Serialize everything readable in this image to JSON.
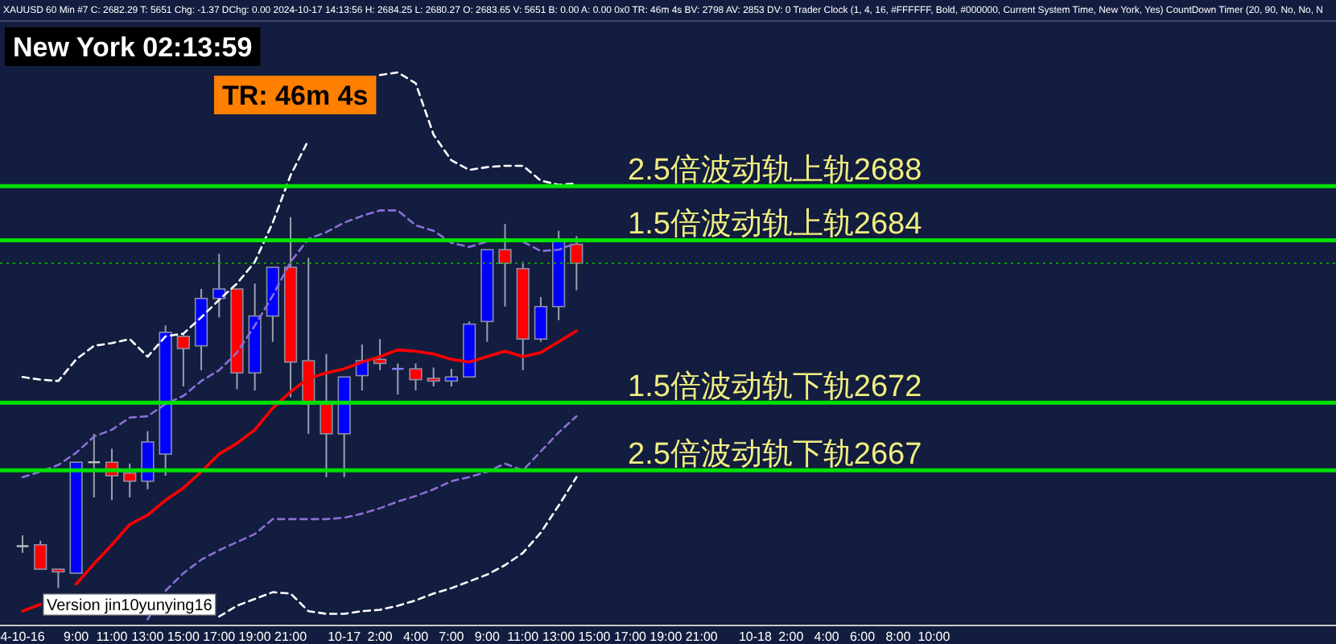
{
  "chart_data": {
    "type": "candlestick",
    "categories": [
      "4-10-16",
      null,
      null,
      "9:00",
      null,
      "11:00",
      null,
      "13:00",
      null,
      "15:00",
      null,
      "17:00",
      null,
      "19:00",
      null,
      "21:00",
      null,
      null,
      "10-17",
      null,
      "2:00",
      null,
      "4:00",
      null,
      "7:00",
      null,
      "9:00",
      null,
      "11:00",
      null,
      "13:00",
      null,
      "15:00",
      null,
      "17:00",
      null,
      "19:00",
      null,
      "21:00",
      null,
      null,
      "10-18",
      null,
      "2:00",
      null,
      "4:00",
      null,
      "6:00",
      null,
      "8:00",
      null,
      "10:00",
      null,
      null,
      null,
      null,
      null,
      null,
      null,
      null,
      null,
      null,
      null,
      null,
      null,
      null,
      null,
      null,
      null,
      null,
      null,
      null,
      null,
      null
    ],
    "ohlc": [
      [
        2661.4,
        2662.2,
        2660.9,
        2661.4
      ],
      [
        2661.5,
        2661.8,
        2659.7,
        2659.7
      ],
      [
        2659.7,
        2659.7,
        2658.3,
        2659.5
      ],
      [
        2659.4,
        2667.6,
        2659.4,
        2667.6
      ],
      [
        2667.6,
        2669.7,
        2665.0,
        2667.6
      ],
      [
        2667.6,
        2668.6,
        2664.8,
        2666.6
      ],
      [
        2666.8,
        2667.5,
        2665.0,
        2666.2
      ],
      [
        2666.2,
        2669.9,
        2665.6,
        2669.1
      ],
      [
        2668.2,
        2677.7,
        2666.6,
        2677.2
      ],
      [
        2676.9,
        2677.1,
        2673.2,
        2676.0
      ],
      [
        2676.2,
        2680.4,
        2674.4,
        2679.7
      ],
      [
        2679.7,
        2683.0,
        2678.3,
        2680.4
      ],
      [
        2680.4,
        2680.4,
        2673.0,
        2674.2
      ],
      [
        2674.2,
        2680.8,
        2672.9,
        2678.4
      ],
      [
        2678.4,
        2682.0,
        2676.5,
        2682.0
      ],
      [
        2682.0,
        2685.7,
        2672.4,
        2675.0
      ],
      [
        2675.1,
        2682.7,
        2669.7,
        2671.9
      ],
      [
        2671.9,
        2675.6,
        2666.5,
        2669.7
      ],
      [
        2669.7,
        2673.9,
        2666.5,
        2673.9
      ],
      [
        2674.0,
        2676.3,
        2672.9,
        2675.1
      ],
      [
        2675.2,
        2676.7,
        2674.4,
        2674.9
      ],
      [
        2674.5,
        2674.9,
        2672.6,
        2674.5
      ],
      [
        2674.5,
        2674.9,
        2672.9,
        2673.7
      ],
      [
        2673.8,
        2674.6,
        2673.2,
        2673.6
      ],
      [
        2673.6,
        2674.5,
        2673.2,
        2673.9
      ],
      [
        2673.9,
        2678.0,
        2673.9,
        2677.8
      ],
      [
        2678.0,
        2683.3,
        2676.5,
        2683.3
      ],
      [
        2683.3,
        2685.2,
        2679.1,
        2682.3
      ],
      [
        2681.9,
        2682.4,
        2674.4,
        2676.7
      ],
      [
        2676.7,
        2679.8,
        2676.5,
        2679.1
      ],
      [
        2679.1,
        2684.7,
        2678.1,
        2683.9
      ],
      [
        2683.7,
        2684.3,
        2680.3,
        2682.3
      ],
      null,
      null,
      null,
      null,
      null,
      null,
      null,
      null,
      null,
      null,
      null,
      null,
      null,
      null,
      null,
      null,
      null,
      null,
      null,
      null,
      null,
      null,
      null,
      null,
      null,
      null,
      null,
      null,
      null,
      null,
      null,
      null,
      null,
      null,
      null,
      null,
      null,
      null,
      null,
      null,
      null,
      null
    ],
    "colors": [
      "#c0c0c0",
      "#ff0000",
      "#ff0000",
      "#0000ff",
      "#c0c0c0",
      "#ff0000",
      "#ff0000",
      "#0000ff",
      "#0000ff",
      "#ff0000",
      "#0000ff",
      "#0000ff",
      "#ff0000",
      "#0000ff",
      "#0000ff",
      "#ff0000",
      "#ff0000",
      "#ff0000",
      "#0000ff",
      "#0000ff",
      "#ff0000",
      "#8080ff",
      "#ff0000",
      "#ff0000",
      "#0000ff",
      "#0000ff",
      "#0000ff",
      "#ff0000",
      "#ff0000",
      "#0000ff",
      "#0000ff",
      "#ff0000",
      null,
      null,
      null,
      null,
      null,
      null,
      null,
      null,
      null,
      null,
      null,
      null,
      null,
      null,
      null,
      null,
      null,
      null,
      null,
      null,
      null,
      null,
      null,
      null,
      null,
      null,
      null,
      null,
      null,
      null,
      null,
      null,
      null,
      null,
      null,
      null,
      null,
      null,
      null,
      null,
      null,
      null
    ],
    "series": [
      {
        "type": "line",
        "color": "#ffffff",
        "line_style": "dashed",
        "values": [
          2673.9,
          2673.7,
          2673.6,
          2675.2,
          2676.2,
          2676.4,
          2676.7,
          2675.4,
          2676.9,
          2677.1,
          2678.3,
          2679.6,
          2680.8,
          2682.4,
          2685.3,
          2688.8,
          2691.4,
          null,
          null,
          null,
          2696.2,
          2696.4,
          2695.6,
          2691.8,
          2689.9,
          2689.2,
          2689.4,
          2689.5,
          2689.5,
          2688.4,
          2688.1,
          2688.2,
          null,
          null,
          null,
          null,
          null,
          null,
          null,
          null,
          null,
          null,
          null,
          null,
          null,
          null,
          null,
          null,
          null,
          null,
          null,
          null,
          null,
          null,
          null,
          null,
          null,
          null,
          null,
          null,
          null,
          null,
          null,
          null,
          null,
          null,
          null,
          null,
          null,
          null,
          null,
          null,
          null,
          null
        ]
      },
      {
        "type": "line",
        "color": "#8a6fd6",
        "line_style": "dashed",
        "values": [
          2666.5,
          2666.9,
          2667.4,
          2668.3,
          2669.5,
          2670.0,
          2670.9,
          2671.0,
          2671.9,
          2672.5,
          2673.6,
          2674.4,
          2675.7,
          2677.7,
          2679.9,
          2682.4,
          2684.1,
          2684.6,
          2685.3,
          2685.8,
          2686.2,
          2686.2,
          2685.1,
          2684.7,
          2683.8,
          2683.5,
          2683.9,
          2684.1,
          2683.9,
          2683.2,
          2683.3,
          2683.8,
          null,
          null,
          null,
          null,
          null,
          null,
          null,
          null,
          null,
          null,
          null,
          null,
          null,
          null,
          null,
          null,
          null,
          null,
          null,
          null,
          null,
          null,
          null,
          null,
          null,
          null,
          null,
          null,
          null,
          null,
          null,
          null,
          null,
          null,
          null,
          null,
          null,
          null,
          null,
          null,
          null,
          null
        ]
      },
      {
        "type": "line",
        "color": "#ff0000",
        "line_style": "solid",
        "values": [
          2656.6,
          2657.1,
          null,
          2658.6,
          2660.1,
          2661.5,
          2663.0,
          2663.7,
          2664.8,
          2665.7,
          2666.9,
          2668.2,
          2669.0,
          2670.0,
          2671.6,
          2672.8,
          2673.8,
          2674.2,
          2674.5,
          2675.0,
          2675.4,
          2675.9,
          2675.8,
          2675.6,
          2675.2,
          2675.0,
          2675.4,
          2675.8,
          2675.4,
          2675.7,
          2676.5,
          2677.3,
          null,
          null,
          null,
          null,
          null,
          null,
          null,
          null,
          null,
          null,
          null,
          null,
          null,
          null,
          null,
          null,
          null,
          null,
          null,
          null,
          null,
          null,
          null,
          null,
          null,
          null,
          null,
          null,
          null,
          null,
          null,
          null,
          null,
          null,
          null,
          null,
          null,
          null,
          null,
          null,
          null,
          null
        ]
      },
      {
        "type": "line",
        "color": "#8a6fd6",
        "line_style": "dashed",
        "values": [
          null,
          null,
          null,
          null,
          null,
          null,
          null,
          2656.0,
          2658.1,
          2659.4,
          2660.4,
          2661.1,
          2661.7,
          2662.3,
          2663.4,
          2663.4,
          2663.4,
          2663.4,
          2663.5,
          2663.8,
          2664.2,
          2664.7,
          2665.1,
          2665.6,
          2666.2,
          2666.5,
          2666.9,
          2667.5,
          2667.0,
          2668.4,
          2669.8,
          2671.0,
          null,
          null,
          null,
          null,
          null,
          null,
          null,
          null,
          null,
          null,
          null,
          null,
          null,
          null,
          null,
          null,
          null,
          null,
          null,
          null,
          null,
          null,
          null,
          null,
          null,
          null,
          null,
          null,
          null,
          null,
          null,
          null,
          null,
          null,
          null,
          null,
          null,
          null,
          null,
          null,
          null,
          null
        ]
      },
      {
        "type": "line",
        "color": "#ffffff",
        "line_style": "dashed",
        "values": [
          null,
          null,
          null,
          null,
          null,
          null,
          null,
          null,
          null,
          null,
          null,
          2656.2,
          2657.0,
          2657.5,
          2658.0,
          2657.9,
          2656.6,
          2656.4,
          2656.4,
          2656.6,
          2656.7,
          2657.0,
          2657.4,
          2657.9,
          2658.3,
          2658.8,
          2659.3,
          2660.0,
          2660.9,
          2662.4,
          2664.4,
          2666.5,
          null,
          null,
          null,
          null,
          null,
          null,
          null,
          null,
          null,
          null,
          null,
          null,
          null,
          null,
          null,
          null,
          null,
          null,
          null,
          null,
          null,
          null,
          null,
          null,
          null,
          null,
          null,
          null,
          null,
          null,
          null,
          null,
          null,
          null,
          null,
          null,
          null,
          null,
          null,
          null,
          null,
          null
        ]
      }
    ],
    "ref_lines": [
      {
        "axis": "y",
        "value": 2688,
        "label": "2.5倍波动轨上轨2688",
        "color": "#00e000"
      },
      {
        "axis": "y",
        "value": 2684,
        "label": "1.5倍波动轨上轨2684",
        "color": "#00e000"
      },
      {
        "axis": "y",
        "value": 2672,
        "label": "1.5倍波动轨下轨2672",
        "color": "#00e000"
      },
      {
        "axis": "y",
        "value": 2667,
        "label": "2.5倍波动轨下轨2667",
        "color": "#00e000"
      },
      {
        "axis": "y",
        "value": 2682.3,
        "color": "#00a000",
        "line_style": "dotted"
      }
    ],
    "ylim": [
      2655.6,
      2700.2
    ],
    "tick_labels": "x",
    "annotations": [
      "XAUUSD  60 Min  #7 C: 2682.29  T: 5651  Chg: -1.37  DChg: 0.00  2024-10-17 14:13:56  H: 2684.25  L: 2680.27  O: 2683.65  V: 5651  B: 0.00  A: 0.00  0x0  TR: 46m 4s  BV: 2798  AV: 2853  DV: 0  Trader Clock   (1, 4, 16, #FFFFFF, Bold, #000000, Current System Time, New York, Yes)  CountDown Timer   (20, 90, No, No, N",
      "New York 02:13:59",
      "TR: 46m 4s",
      "Version jin10yunying16"
    ]
  }
}
